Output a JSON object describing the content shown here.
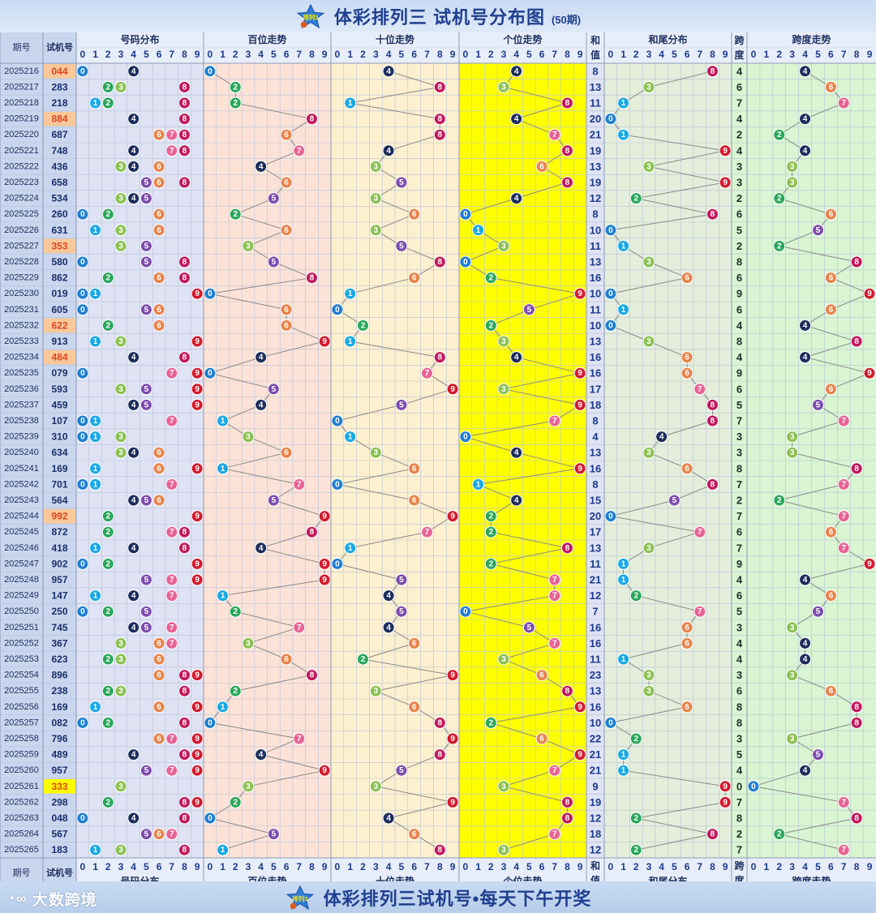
{
  "header": {
    "title": "体彩排列三 试机号分布图",
    "subtitle": "(50期)",
    "logo_text": "排列3"
  },
  "footer": {
    "slogan": "体彩排列三试机号•每天下午开奖",
    "logo_text": "排列3",
    "brand": "大数跨境"
  },
  "columns": {
    "issue": "期号",
    "test": "试机号",
    "dist": "号码分布",
    "hundreds": "百位走势",
    "tens": "十位走势",
    "units": "个位走势",
    "sum_top": "和",
    "sum_bottom": "值",
    "tail": "和尾分布",
    "span_top": "跨",
    "span_bottom": "度",
    "span_trend": "跨度走势"
  },
  "digits": [
    "0",
    "1",
    "2",
    "3",
    "4",
    "5",
    "6",
    "7",
    "8",
    "9"
  ],
  "colors": {
    "ball": [
      "#1f7fd0",
      "#19a9e4",
      "#29a85a",
      "#8cc152",
      "#1c2d5c",
      "#7d4cad",
      "#e8834a",
      "#e86393",
      "#c2185b",
      "#d41a2e"
    ],
    "bg_dist": "#dfe3f4",
    "bg_hundreds": "#fde3d7",
    "bg_tens": "#fdf0cf",
    "bg_units": "#ffff00",
    "bg_tail": "#e4eedb",
    "bg_span": "#d9f5d2",
    "bg_label": "#c9d6ee",
    "highlight_pair": "#f8c89a",
    "highlight_triple": "#ffff00"
  },
  "chart_data": {
    "type": "table",
    "rows": [
      {
        "issue": "2025216",
        "test": "044",
        "sum": "8",
        "span": "4",
        "mark": "pair"
      },
      {
        "issue": "2025217",
        "test": "283",
        "sum": "13",
        "span": "6"
      },
      {
        "issue": "2025218",
        "test": "218",
        "sum": "11",
        "span": "7"
      },
      {
        "issue": "2025219",
        "test": "884",
        "sum": "20",
        "span": "4",
        "mark": "pair"
      },
      {
        "issue": "2025220",
        "test": "687",
        "sum": "21",
        "span": "2"
      },
      {
        "issue": "2025221",
        "test": "748",
        "sum": "19",
        "span": "4"
      },
      {
        "issue": "2025222",
        "test": "436",
        "sum": "13",
        "span": "3"
      },
      {
        "issue": "2025223",
        "test": "658",
        "sum": "19",
        "span": "3"
      },
      {
        "issue": "2025224",
        "test": "534",
        "sum": "12",
        "span": "2"
      },
      {
        "issue": "2025225",
        "test": "260",
        "sum": "8",
        "span": "6"
      },
      {
        "issue": "2025226",
        "test": "631",
        "sum": "10",
        "span": "5"
      },
      {
        "issue": "2025227",
        "test": "353",
        "sum": "11",
        "span": "2",
        "mark": "pair"
      },
      {
        "issue": "2025228",
        "test": "580",
        "sum": "13",
        "span": "8"
      },
      {
        "issue": "2025229",
        "test": "862",
        "sum": "16",
        "span": "6"
      },
      {
        "issue": "2025230",
        "test": "019",
        "sum": "10",
        "span": "9"
      },
      {
        "issue": "2025231",
        "test": "605",
        "sum": "11",
        "span": "6"
      },
      {
        "issue": "2025232",
        "test": "622",
        "sum": "10",
        "span": "4",
        "mark": "pair"
      },
      {
        "issue": "2025233",
        "test": "913",
        "sum": "13",
        "span": "8"
      },
      {
        "issue": "2025234",
        "test": "484",
        "sum": "16",
        "span": "4",
        "mark": "pair"
      },
      {
        "issue": "2025235",
        "test": "079",
        "sum": "16",
        "span": "9"
      },
      {
        "issue": "2025236",
        "test": "593",
        "sum": "17",
        "span": "6"
      },
      {
        "issue": "2025237",
        "test": "459",
        "sum": "18",
        "span": "5"
      },
      {
        "issue": "2025238",
        "test": "107",
        "sum": "8",
        "span": "7"
      },
      {
        "issue": "2025239",
        "test": "310",
        "sum": "4",
        "span": "3"
      },
      {
        "issue": "2025240",
        "test": "634",
        "sum": "13",
        "span": "3"
      },
      {
        "issue": "2025241",
        "test": "169",
        "sum": "16",
        "span": "8"
      },
      {
        "issue": "2025242",
        "test": "701",
        "sum": "8",
        "span": "7"
      },
      {
        "issue": "2025243",
        "test": "564",
        "sum": "15",
        "span": "2"
      },
      {
        "issue": "2025244",
        "test": "992",
        "sum": "20",
        "span": "7",
        "mark": "pair"
      },
      {
        "issue": "2025245",
        "test": "872",
        "sum": "17",
        "span": "6"
      },
      {
        "issue": "2025246",
        "test": "418",
        "sum": "13",
        "span": "7"
      },
      {
        "issue": "2025247",
        "test": "902",
        "sum": "11",
        "span": "9"
      },
      {
        "issue": "2025248",
        "test": "957",
        "sum": "21",
        "span": "4"
      },
      {
        "issue": "2025249",
        "test": "147",
        "sum": "12",
        "span": "6"
      },
      {
        "issue": "2025250",
        "test": "250",
        "sum": "7",
        "span": "5"
      },
      {
        "issue": "2025251",
        "test": "745",
        "sum": "16",
        "span": "3"
      },
      {
        "issue": "2025252",
        "test": "367",
        "sum": "16",
        "span": "4"
      },
      {
        "issue": "2025253",
        "test": "623",
        "sum": "11",
        "span": "4"
      },
      {
        "issue": "2025254",
        "test": "896",
        "sum": "23",
        "span": "3"
      },
      {
        "issue": "2025255",
        "test": "238",
        "sum": "13",
        "span": "6"
      },
      {
        "issue": "2025256",
        "test": "169",
        "sum": "16",
        "span": "8"
      },
      {
        "issue": "2025257",
        "test": "082",
        "sum": "10",
        "span": "8"
      },
      {
        "issue": "2025258",
        "test": "796",
        "sum": "22",
        "span": "3"
      },
      {
        "issue": "2025259",
        "test": "489",
        "sum": "21",
        "span": "5"
      },
      {
        "issue": "2025260",
        "test": "957",
        "sum": "21",
        "span": "4"
      },
      {
        "issue": "2025261",
        "test": "333",
        "sum": "9",
        "span": "0",
        "mark": "triple"
      },
      {
        "issue": "2025262",
        "test": "298",
        "sum": "19",
        "span": "7"
      },
      {
        "issue": "2025263",
        "test": "048",
        "sum": "12",
        "span": "8"
      },
      {
        "issue": "2025264",
        "test": "567",
        "sum": "18",
        "span": "2"
      },
      {
        "issue": "2025265",
        "test": "183",
        "sum": "12",
        "span": "7"
      }
    ]
  }
}
